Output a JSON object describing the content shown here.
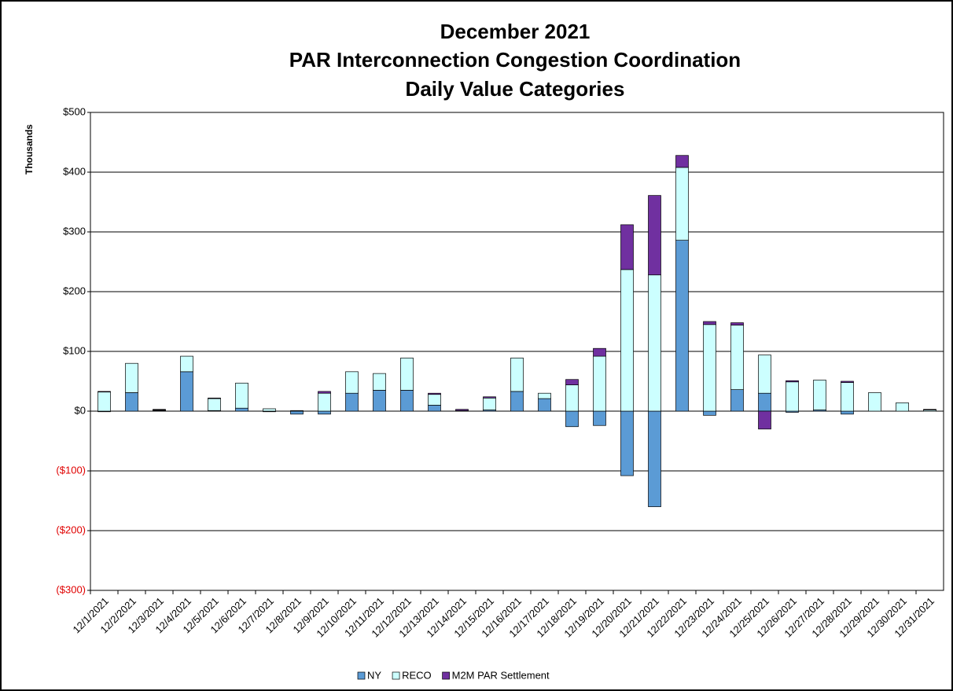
{
  "chart_data": {
    "type": "bar",
    "stacked": true,
    "title": [
      "December 2021",
      "PAR Interconnection Congestion Coordination",
      "Daily Value Categories"
    ],
    "ylabel": "Thousands",
    "categories": [
      "12/1/2021",
      "12/2/2021",
      "12/3/2021",
      "12/4/2021",
      "12/5/2021",
      "12/6/2021",
      "12/7/2021",
      "12/8/2021",
      "12/9/2021",
      "12/10/2021",
      "12/11/2021",
      "12/12/2021",
      "12/13/2021",
      "12/14/2021",
      "12/15/2021",
      "12/16/2021",
      "12/17/2021",
      "12/18/2021",
      "12/19/2021",
      "12/20/2021",
      "12/21/2021",
      "12/22/2021",
      "12/23/2021",
      "12/24/2021",
      "12/25/2021",
      "12/26/2021",
      "12/27/2021",
      "12/28/2021",
      "12/29/2021",
      "12/30/2021",
      "12/31/2021"
    ],
    "series": [
      {
        "name": "NY",
        "color": "#5b9bd5",
        "values": [
          -1,
          31,
          1,
          66,
          1,
          5,
          -1,
          -5,
          -5,
          30,
          35,
          35,
          10,
          1,
          2,
          33,
          21,
          -26,
          -24,
          -108,
          -160,
          286,
          -7,
          36,
          30,
          -2,
          2,
          -5,
          0,
          0,
          0
        ]
      },
      {
        "name": "RECO",
        "color": "#ccffff",
        "values": [
          32,
          49,
          1,
          26,
          20,
          42,
          4,
          1,
          30,
          36,
          28,
          54,
          18,
          0,
          20,
          56,
          9,
          44,
          92,
          237,
          228,
          122,
          145,
          108,
          64,
          49,
          50,
          48,
          31,
          14,
          2
        ]
      },
      {
        "name": "M2M PAR Settlement",
        "color": "#7030a0",
        "values": [
          1,
          0,
          1,
          0,
          1,
          0,
          0,
          0,
          3,
          0,
          0,
          0,
          2,
          2,
          2,
          0,
          0,
          9,
          13,
          75,
          133,
          20,
          5,
          4,
          -30,
          2,
          0,
          2,
          0,
          0,
          1
        ]
      }
    ],
    "ylim": [
      -300,
      500
    ],
    "yticks": [
      {
        "value": -300,
        "label": "($300)"
      },
      {
        "value": -200,
        "label": "($200)"
      },
      {
        "value": -100,
        "label": "($100)"
      },
      {
        "value": 0,
        "label": "$0"
      },
      {
        "value": 100,
        "label": "$100"
      },
      {
        "value": 200,
        "label": "$200"
      },
      {
        "value": 300,
        "label": "$300"
      },
      {
        "value": 400,
        "label": "$400"
      },
      {
        "value": 500,
        "label": "$500"
      }
    ],
    "grid": true,
    "legend": "bottom"
  }
}
